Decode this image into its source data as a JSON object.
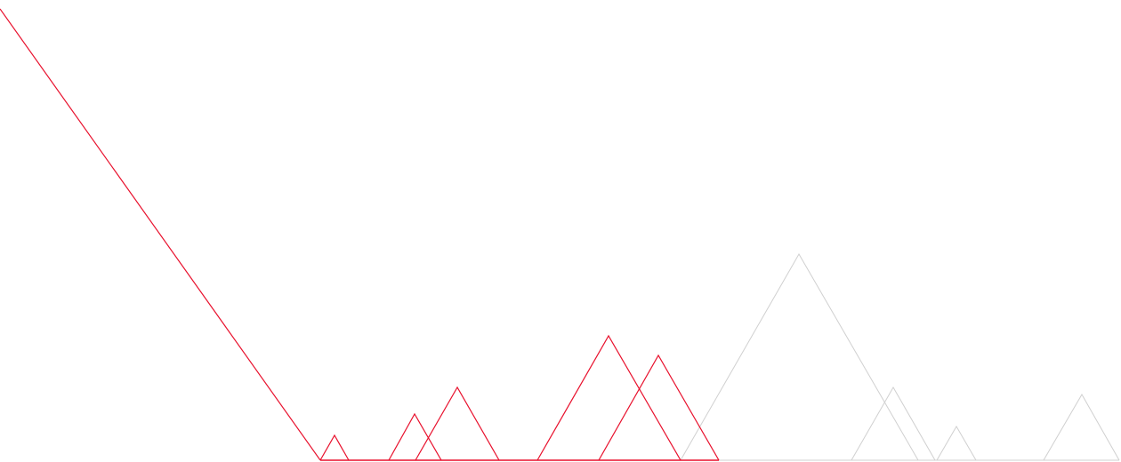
{
  "colors": {
    "background": "#ffffff",
    "active": "#e8112d",
    "inactive": "#d0d0d0"
  }
}
